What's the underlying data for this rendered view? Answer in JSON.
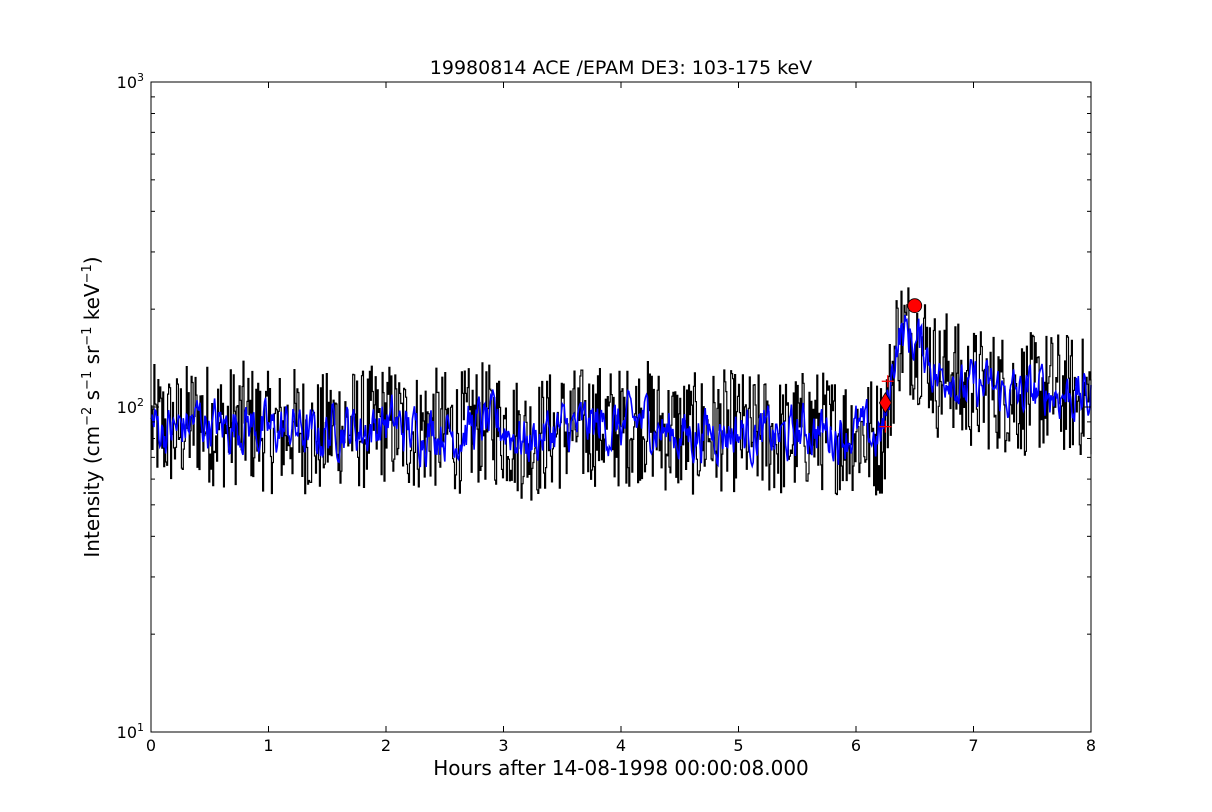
{
  "chart_data": {
    "type": "line",
    "title": "19980814 ACE /EPAM DE3: 103-175 keV",
    "xlabel": "Hours after 14-08-1998 00:00:08.000",
    "ylabel": "Intensity (cm⁻² s⁻¹ sr⁻¹ keV⁻¹)",
    "ylabel_parts": [
      "Intensity (cm",
      "−2",
      " s",
      "−1",
      " sr",
      "−1",
      " keV",
      "−1",
      ")"
    ],
    "xlim": [
      0,
      8
    ],
    "ylim": [
      10,
      1000
    ],
    "yscale": "log",
    "grid": false,
    "x_ticks": [
      "0",
      "1",
      "2",
      "3",
      "4",
      "5",
      "6",
      "7",
      "8"
    ],
    "y_ticks": [
      {
        "value": 10,
        "base": "10",
        "exp": "1"
      },
      {
        "value": 100,
        "base": "10",
        "exp": "2"
      },
      {
        "value": 1000,
        "base": "10",
        "exp": "3"
      }
    ],
    "colors": {
      "raw": "#000000",
      "smoothed": "#0000ff",
      "markers": "#ff0000"
    },
    "series": [
      {
        "role": "raw",
        "color": "#000000",
        "x": [
          0.0,
          0.2,
          0.4,
          0.6,
          0.8,
          1.0,
          1.2,
          1.4,
          1.6,
          1.8,
          2.0,
          2.2,
          2.4,
          2.6,
          2.8,
          3.0,
          3.2,
          3.4,
          3.6,
          3.8,
          4.0,
          4.2,
          4.4,
          4.6,
          4.8,
          5.0,
          5.2,
          5.4,
          5.6,
          5.8,
          6.0,
          6.1,
          6.2,
          6.25,
          6.3,
          6.35,
          6.4,
          6.5,
          6.6,
          6.7,
          6.8,
          6.9,
          7.0,
          7.2,
          7.4,
          7.6,
          7.8,
          8.0
        ],
        "y": [
          88,
          84,
          92,
          86,
          90,
          83,
          87,
          80,
          88,
          85,
          90,
          84,
          86,
          83,
          89,
          87,
          78,
          84,
          86,
          88,
          86,
          92,
          83,
          82,
          85,
          84,
          82,
          80,
          86,
          83,
          84,
          82,
          80,
          90,
          120,
          165,
          170,
          160,
          150,
          120,
          135,
          110,
          115,
          112,
          108,
          112,
          110,
          105
        ],
        "noise": 0.19
      },
      {
        "role": "smoothed",
        "color": "#0000ff",
        "x": [
          0.0,
          0.2,
          0.4,
          0.6,
          0.8,
          1.0,
          1.2,
          1.4,
          1.6,
          1.8,
          2.0,
          2.2,
          2.4,
          2.6,
          2.8,
          3.0,
          3.2,
          3.4,
          3.6,
          3.8,
          4.0,
          4.2,
          4.4,
          4.6,
          4.8,
          5.0,
          5.2,
          5.4,
          5.6,
          5.8,
          6.0,
          6.1,
          6.2,
          6.25,
          6.3,
          6.35,
          6.4,
          6.5,
          6.6,
          6.7,
          6.8,
          6.9,
          7.0,
          7.2,
          7.4,
          7.6,
          7.8,
          8.0
        ],
        "y": [
          88,
          84,
          92,
          86,
          90,
          83,
          87,
          80,
          88,
          85,
          90,
          84,
          86,
          83,
          89,
          87,
          78,
          84,
          86,
          88,
          86,
          92,
          83,
          82,
          85,
          84,
          82,
          80,
          86,
          83,
          84,
          82,
          80,
          90,
          120,
          165,
          170,
          160,
          150,
          120,
          135,
          110,
          115,
          112,
          108,
          112,
          110,
          105
        ],
        "noise": 0.07
      }
    ],
    "markers": [
      {
        "shape": "plus",
        "x": 6.27,
        "y": 120
      },
      {
        "shape": "diamond",
        "x": 6.25,
        "y": 103
      },
      {
        "shape": "plus",
        "x": 6.25,
        "y": 87
      },
      {
        "shape": "circle",
        "x": 6.5,
        "y": 205
      }
    ]
  }
}
